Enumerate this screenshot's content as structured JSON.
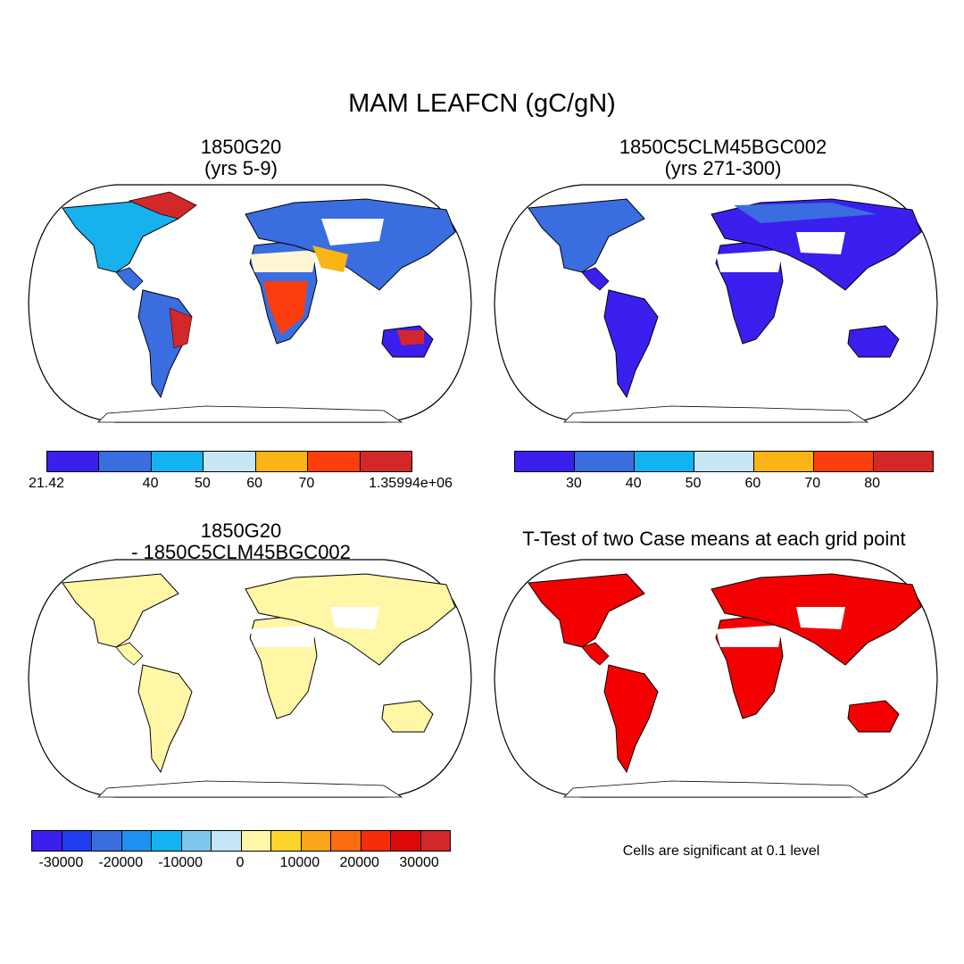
{
  "title": "MAM LEAFCN (gC/gN)",
  "panels": [
    {
      "title_line1": "1850G20",
      "title_line2": "(yrs 5-9)"
    },
    {
      "title_line1": "1850C5CLM45BGC002",
      "title_line2": "(yrs 271-300)"
    },
    {
      "title_line1": "1850G20",
      "title_line2": "- 1850C5CLM45BGC002"
    },
    {
      "title_line1": "T-Test of two Case means at each grid point"
    }
  ],
  "colorbar_1": {
    "colors": [
      "#3b1fee",
      "#3a6de0",
      "#12b3f0",
      "#c6e6f5",
      "#fbb416",
      "#fb3e0c",
      "#d3282a"
    ],
    "labels": [
      "21.42",
      "40",
      "50",
      "60",
      "70",
      "1.35994e+06"
    ]
  },
  "colorbar_2": {
    "colors": [
      "#3b1fee",
      "#3a6de0",
      "#12b3f0",
      "#c6e6f5",
      "#fbb416",
      "#fb3e0c",
      "#d3282a"
    ],
    "labels": [
      "30",
      "40",
      "50",
      "60",
      "70",
      "80"
    ]
  },
  "colorbar_3": {
    "colors": [
      "#3b1fee",
      "#1e3ef0",
      "#3a6de0",
      "#1e90f0",
      "#12b3f0",
      "#7ec8ee",
      "#c6e6f5",
      "#fff6a6",
      "#fdd42c",
      "#fba41a",
      "#fb6b10",
      "#f52d08",
      "#de0808",
      "#d3282a"
    ],
    "labels": [
      "-30000",
      "-20000",
      "-10000",
      "0",
      "10000",
      "20000",
      "30000"
    ]
  },
  "ttest_note": "Cells are significant at 0.1 level"
}
